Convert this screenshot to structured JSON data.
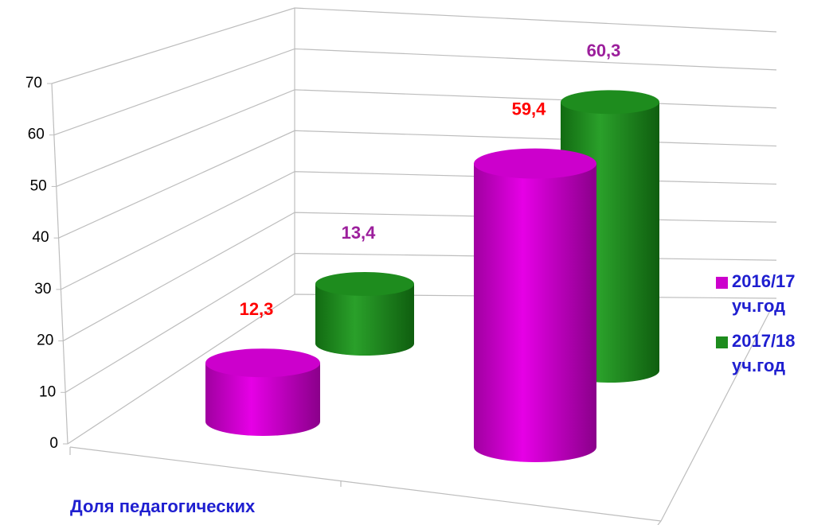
{
  "chart_data": {
    "type": "cylinder3d",
    "categories": [
      "Доля педагогических",
      null
    ],
    "series": [
      {
        "name": "2016/17 уч.год",
        "color": "#cc00cc",
        "label_color": "#ff0000",
        "values": [
          12.3,
          59.4
        ],
        "value_labels": [
          "12,3",
          "59,4"
        ]
      },
      {
        "name": "2017/18 уч.год",
        "color": "#1e8c1e",
        "label_color": "#9c1f9c",
        "values": [
          13.4,
          60.3
        ],
        "value_labels": [
          "13,4",
          "60,3"
        ]
      }
    ],
    "ylim": [
      0,
      70
    ],
    "yticks": [
      0,
      10,
      20,
      30,
      40,
      50,
      60,
      70
    ],
    "grid": true,
    "legend": "right"
  }
}
